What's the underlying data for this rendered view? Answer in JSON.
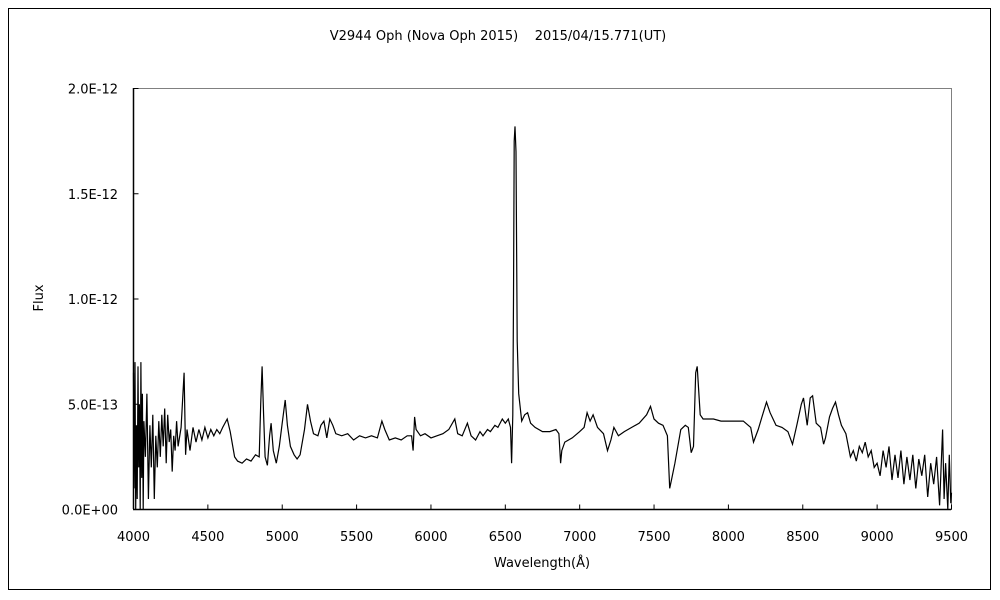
{
  "chart_data": {
    "type": "line",
    "title": "V2944 Oph (Nova Oph 2015)    2015/04/15.771(UT)",
    "xlabel": "Wavelength(Å)",
    "ylabel": "Flux",
    "xlim": [
      4000,
      9500
    ],
    "ylim": [
      0,
      2e-12
    ],
    "x_ticks": [
      4000,
      4500,
      5000,
      5500,
      6000,
      6500,
      7000,
      7500,
      8000,
      8500,
      9000,
      9500
    ],
    "x_tick_labels": [
      "4000",
      "4500",
      "5000",
      "5500",
      "6000",
      "6500",
      "7000",
      "7500",
      "8000",
      "8500",
      "9000",
      "9500"
    ],
    "y_ticks": [
      0,
      5e-13,
      1e-12,
      1.5e-12,
      2e-12
    ],
    "y_tick_labels": [
      "0.0E+00",
      "5.0E-13",
      "1.0E-12",
      "1.5E-12",
      "2.0E-12"
    ],
    "grid": false,
    "legend": "none",
    "line_color": "#000000",
    "series": [
      {
        "x": [
          4000,
          4005,
          4010,
          4015,
          4020,
          4025,
          4030,
          4035,
          4040,
          4045,
          4050,
          4055,
          4060,
          4065,
          4070,
          4080,
          4090,
          4100,
          4110,
          4120,
          4130,
          4140,
          4150,
          4160,
          4170,
          4180,
          4190,
          4200,
          4210,
          4220,
          4230,
          4240,
          4250,
          4260,
          4270,
          4280,
          4290,
          4300,
          4320,
          4340,
          4350,
          4360,
          4380,
          4400,
          4420,
          4440,
          4460,
          4480,
          4500,
          4520,
          4540,
          4560,
          4580,
          4600,
          4630,
          4650,
          4680,
          4700,
          4730,
          4760,
          4790,
          4820,
          4845,
          4855,
          4865,
          4875,
          4885,
          4900,
          4915,
          4925,
          4940,
          4960,
          4980,
          5000,
          5020,
          5035,
          5055,
          5080,
          5100,
          5120,
          5150,
          5170,
          5190,
          5210,
          5240,
          5260,
          5280,
          5300,
          5320,
          5340,
          5360,
          5400,
          5440,
          5480,
          5520,
          5560,
          5600,
          5640,
          5670,
          5690,
          5720,
          5760,
          5800,
          5840,
          5870,
          5880,
          5890,
          5900,
          5930,
          5960,
          6000,
          6040,
          6080,
          6120,
          6160,
          6180,
          6210,
          6245,
          6270,
          6300,
          6330,
          6350,
          6380,
          6400,
          6430,
          6450,
          6480,
          6500,
          6520,
          6535,
          6542,
          6550,
          6555,
          6560,
          6565,
          6572,
          6580,
          6590,
          6610,
          6630,
          6650,
          6670,
          6700,
          6750,
          6800,
          6840,
          6860,
          6872,
          6880,
          6900,
          6950,
          7000,
          7030,
          7050,
          7070,
          7090,
          7120,
          7160,
          7187,
          7210,
          7230,
          7260,
          7300,
          7350,
          7400,
          7450,
          7476,
          7500,
          7530,
          7560,
          7590,
          7605,
          7620,
          7640,
          7680,
          7710,
          7730,
          7750,
          7765,
          7780,
          7790,
          7810,
          7830,
          7900,
          7950,
          8000,
          8050,
          8100,
          8150,
          8169,
          8200,
          8230,
          8256,
          8280,
          8320,
          8360,
          8400,
          8431,
          8460,
          8490,
          8505,
          8530,
          8550,
          8566,
          8590,
          8620,
          8640,
          8653,
          8680,
          8700,
          8720,
          8740,
          8760,
          8790,
          8820,
          8840,
          8860,
          8880,
          8900,
          8920,
          8940,
          8960,
          8980,
          9000,
          9020,
          9040,
          9060,
          9080,
          9100,
          9120,
          9140,
          9160,
          9180,
          9200,
          9220,
          9240,
          9260,
          9280,
          9300,
          9320,
          9340,
          9360,
          9380,
          9400,
          9420,
          9440,
          9450,
          9460,
          9475,
          9485,
          9495,
          9500
        ],
        "y": [
          6.5e-13,
          1e-13,
          7e-13,
          0,
          4e-13,
          5e-14,
          6.8e-13,
          2e-13,
          5e-13,
          0,
          7e-13,
          1.5e-13,
          5.5e-13,
          0,
          4.2e-13,
          2.5e-13,
          5.5e-13,
          5e-14,
          4e-13,
          2e-13,
          4.5e-13,
          5e-14,
          3.5e-13,
          2e-13,
          4.2e-13,
          2.5e-13,
          4.5e-13,
          3e-13,
          4.8e-13,
          2.2e-13,
          4.5e-13,
          3.2e-13,
          3.8e-13,
          1.8e-13,
          3.5e-13,
          2.8e-13,
          4.2e-13,
          3e-13,
          3.9e-13,
          6.5e-13,
          2.6e-13,
          3.8e-13,
          2.8e-13,
          3.9e-13,
          3.2e-13,
          3.8e-13,
          3.3e-13,
          3.9e-13,
          3.4e-13,
          3.8e-13,
          3.5e-13,
          3.8e-13,
          3.6e-13,
          3.9e-13,
          4.3e-13,
          3.7e-13,
          2.5e-13,
          2.3e-13,
          2.2e-13,
          2.4e-13,
          2.3e-13,
          2.6e-13,
          2.5e-13,
          5e-13,
          6.8e-13,
          4.5e-13,
          2.5e-13,
          2.1e-13,
          3.5e-13,
          4.1e-13,
          2.8e-13,
          2.2e-13,
          3e-13,
          4.1e-13,
          5.2e-13,
          4e-13,
          3e-13,
          2.6e-13,
          2.4e-13,
          2.6e-13,
          3.8e-13,
          5e-13,
          4.2e-13,
          3.6e-13,
          3.5e-13,
          4e-13,
          4.2e-13,
          3.4e-13,
          4.3e-13,
          4e-13,
          3.6e-13,
          3.5e-13,
          3.6e-13,
          3.3e-13,
          3.5e-13,
          3.4e-13,
          3.5e-13,
          3.4e-13,
          4.2e-13,
          3.8e-13,
          3.3e-13,
          3.4e-13,
          3.3e-13,
          3.5e-13,
          3.5e-13,
          2.8e-13,
          4.4e-13,
          3.8e-13,
          3.5e-13,
          3.6e-13,
          3.4e-13,
          3.5e-13,
          3.6e-13,
          3.8e-13,
          4.3e-13,
          3.6e-13,
          3.5e-13,
          4.1e-13,
          3.5e-13,
          3.3e-13,
          3.7e-13,
          3.5e-13,
          3.8e-13,
          3.7e-13,
          4e-13,
          3.9e-13,
          4.3e-13,
          4.1e-13,
          4.3e-13,
          3.9e-13,
          2.2e-13,
          4.5e-13,
          1e-12,
          1.75e-12,
          1.82e-12,
          1.7e-12,
          8e-13,
          5.5e-13,
          4.2e-13,
          4.5e-13,
          4.6e-13,
          4.1e-13,
          3.9e-13,
          3.7e-13,
          3.7e-13,
          3.8e-13,
          3.6e-13,
          2.2e-13,
          2.8e-13,
          3.2e-13,
          3.4e-13,
          3.7e-13,
          3.9e-13,
          4.6e-13,
          4.2e-13,
          4.5e-13,
          3.9e-13,
          3.6e-13,
          2.8e-13,
          3.3e-13,
          3.9e-13,
          3.5e-13,
          3.7e-13,
          3.9e-13,
          4.1e-13,
          4.5e-13,
          4.9e-13,
          4.3e-13,
          4.1e-13,
          4e-13,
          3.5e-13,
          1e-13,
          1.5e-13,
          2.2e-13,
          3.8e-13,
          4e-13,
          3.9e-13,
          2.7e-13,
          3e-13,
          6.5e-13,
          6.8e-13,
          4.5e-13,
          4.3e-13,
          4.3e-13,
          4.2e-13,
          4.2e-13,
          4.2e-13,
          4.2e-13,
          3.9e-13,
          3.2e-13,
          3.8e-13,
          4.5e-13,
          5.1e-13,
          4.6e-13,
          4e-13,
          3.9e-13,
          3.7e-13,
          3.1e-13,
          4e-13,
          5e-13,
          5.3e-13,
          4e-13,
          5.3e-13,
          5.4e-13,
          4.1e-13,
          3.9e-13,
          3.1e-13,
          3.4e-13,
          4.4e-13,
          4.8e-13,
          5.1e-13,
          4.5e-13,
          4e-13,
          3.6e-13,
          2.5e-13,
          2.8e-13,
          2.3e-13,
          3e-13,
          2.7e-13,
          3.2e-13,
          2.5e-13,
          2.8e-13,
          2e-13,
          2.2e-13,
          1.6e-13,
          2.8e-13,
          2e-13,
          3e-13,
          1.4e-13,
          2.6e-13,
          1.5e-13,
          2.8e-13,
          1.2e-13,
          2.5e-13,
          1.4e-13,
          2.6e-13,
          1e-13,
          2.4e-13,
          1.6e-13,
          2.6e-13,
          6e-14,
          2.2e-13,
          1.2e-13,
          2.5e-13,
          2e-14,
          3.8e-13,
          5e-14,
          2.2e-13,
          0,
          2.6e-13,
          3e-14,
          8e-14
        ]
      }
    ]
  }
}
